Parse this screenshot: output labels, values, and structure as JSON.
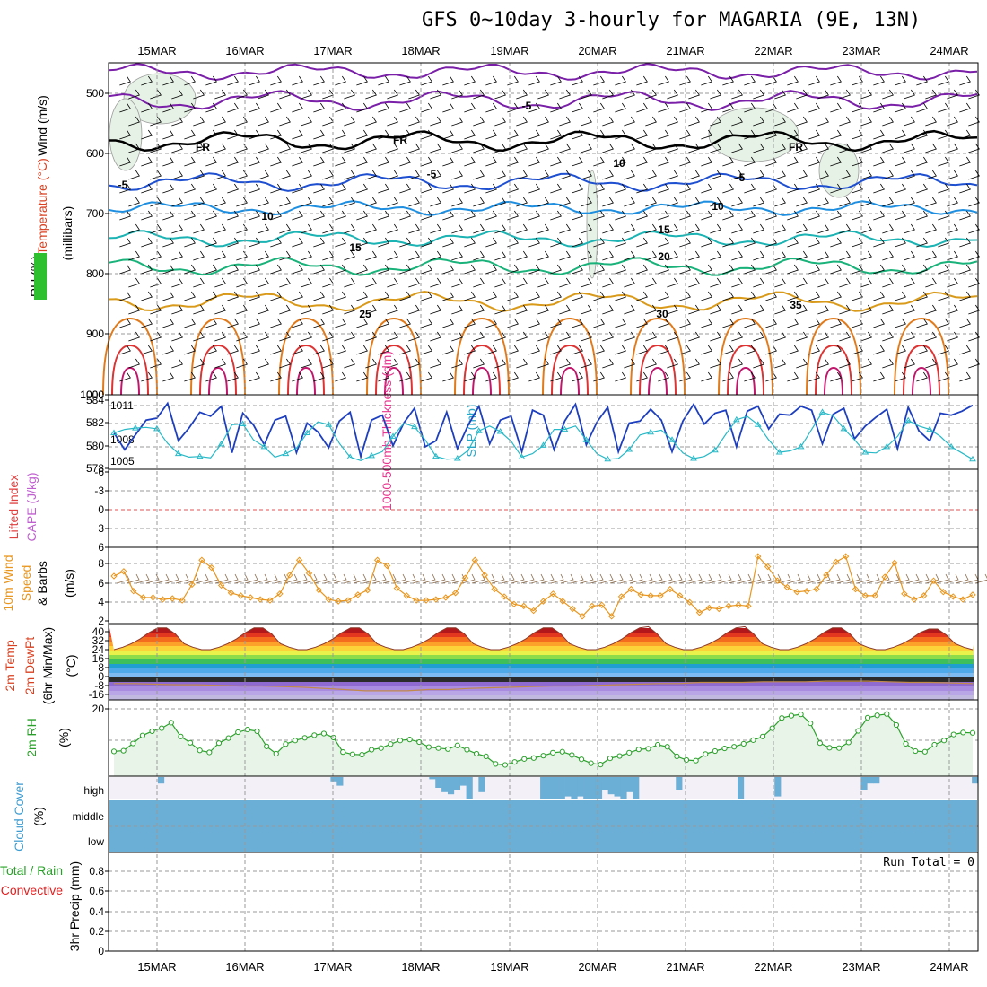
{
  "title": "GFS 0~10day 3-hourly for MAGARIA (9E, 13N)",
  "dates": [
    "15MAR",
    "16MAR",
    "17MAR",
    "18MAR",
    "19MAR",
    "20MAR",
    "21MAR",
    "22MAR",
    "23MAR",
    "24MAR"
  ],
  "colors": {
    "grid": "#9a9a9a",
    "temp_green": "#2aa02a",
    "cloud": "#6baed6",
    "rh_fill": "#e8f4e8",
    "orange": "#e8961e",
    "thickness": "#1d3fbf",
    "slp": "#27b9c7"
  },
  "panels": {
    "upper": {
      "ylabel_wind": "Wind (m/s)",
      "ylabel_temp": "Temperature (°C)",
      "ylabel_rh": "RH (%)",
      "ylabel_unit": "(millibars)",
      "levels": [
        "500",
        "600",
        "700",
        "800",
        "900",
        "1000"
      ],
      "contour_labels": [
        {
          "text": "-5",
          "color": "#7a1fa8"
        },
        {
          "text": "FR",
          "color": "#000000"
        },
        {
          "text": "FR",
          "color": "#000000"
        },
        {
          "text": "FR",
          "color": "#000000"
        },
        {
          "text": "-5",
          "color": "#1d4fd0"
        },
        {
          "text": "-5",
          "color": "#1d4fd0"
        },
        {
          "text": "-5",
          "color": "#1d4fd0"
        },
        {
          "text": "10",
          "color": "#1e8fe0"
        },
        {
          "text": "10",
          "color": "#1e8fe0"
        },
        {
          "text": "15",
          "color": "#1bb3b3"
        },
        {
          "text": "15",
          "color": "#1bb3b3"
        },
        {
          "text": "20",
          "color": "#19b27a"
        },
        {
          "text": "25",
          "color": "#d99a1a"
        },
        {
          "text": "30",
          "color": "#e07a1a"
        },
        {
          "text": "35",
          "color": "#d99a1a"
        },
        {
          "text": "10",
          "color": "#888888"
        }
      ]
    },
    "thickness_slp": {
      "ylabel_thickness": "1000-500mb Thickness (dm)",
      "ylabel_slp": "SLP (mb)",
      "left_ticks": [
        "584",
        "582",
        "580",
        "578"
      ],
      "right_ticks": [
        "1011",
        "1008",
        "1005"
      ],
      "top_tick": "1000"
    },
    "li_cape": {
      "ylabel_li": "Lifted Index",
      "ylabel_cape": "CAPE (J/kg)",
      "ticks": [
        "-6",
        "-3",
        "0",
        "3",
        "6"
      ]
    },
    "wind10m": {
      "ylabel_a": "10m Wind",
      "ylabel_b": "Speed",
      "ylabel_c": "& Barbs",
      "ylabel_unit": "(m/s)",
      "ticks": [
        "8",
        "6",
        "4",
        "2"
      ]
    },
    "temp2m": {
      "ylabel_a": "2m Temp",
      "ylabel_b": "2m DewPt",
      "ylabel_c": "(6hr Min/Max)",
      "ylabel_unit": "(°C)",
      "ticks": [
        "40",
        "32",
        "24",
        "16",
        "8",
        "0",
        "-8",
        "-16"
      ]
    },
    "rh2m": {
      "ylabel": "2m RH",
      "ylabel_unit": "(%)",
      "ticks": [
        "20"
      ]
    },
    "cloud": {
      "ylabel": "Cloud Cover",
      "ylabel_unit": "(%)",
      "layers": [
        "high",
        "middle",
        "low"
      ]
    },
    "precip": {
      "ylabel_a": "Total / Rain",
      "ylabel_b": "Convective",
      "ylabel_c": "3hr Precip (mm)",
      "ticks": [
        "0.8",
        "0.6",
        "0.4",
        "0.2",
        "0"
      ],
      "run_total": "Run Total = 0"
    }
  },
  "chart_data": [
    {
      "type": "line",
      "title": "1000-500mb Thickness / SLP",
      "ylabel": "Thickness (dm)",
      "ylim": [
        578,
        585
      ],
      "series": [
        {
          "name": "1000-500mb Thickness (dm)",
          "values": [
            581.5,
            579.8,
            581.3,
            582.8,
            583,
            584.5,
            580.7,
            582,
            583.6,
            583.2,
            584.2,
            579.5,
            583.5,
            582.3,
            580.3,
            582.8,
            583.2,
            579.5,
            582.5,
            581.6,
            580,
            582.7,
            583.6,
            579.1,
            582.8,
            583.3,
            580.2,
            582.5,
            584,
            580.1,
            580.7,
            583.6,
            579.9,
            582.3,
            584.2,
            580.4,
            582.8,
            583.2,
            579.6,
            583.8,
            583.3,
            579.8,
            582.7,
            584.4,
            580.3,
            582.6,
            584.1,
            579.6,
            582.5,
            582.7,
            583.9,
            582.8,
            579.6,
            582.7,
            584.4,
            582.4,
            583.5,
            583.8,
            580.1,
            583.7,
            584.2,
            581.9,
            583.4,
            583.3,
            584.2,
            583.8,
            580.4,
            583.4,
            584,
            580.9,
            582.2,
            583.1,
            583.9,
            579.9,
            584.1,
            581.7,
            580.7,
            583.5,
            583.3,
            583.7,
            584.3
          ]
        }
      ],
      "slp_series": {
        "name": "SLP (mb)",
        "ylim": [
          1004,
          1014
        ],
        "values": [
          1009,
          1009.5,
          1009.7,
          1009.8,
          1009.6,
          1007.5,
          1006,
          1005.5,
          1005.6,
          1005.4,
          1007.4,
          1010.2,
          1010.3,
          1008,
          1007,
          1005.5,
          1006,
          1006.8,
          1009,
          1010.6,
          1010.2,
          1007.5,
          1005.5,
          1005,
          1005.7,
          1006.3,
          1008.5,
          1010.4,
          1009.9,
          1008,
          1005.6,
          1005.2,
          1005.3,
          1006.5,
          1009.3,
          1010,
          1009.2,
          1007.8,
          1005.5,
          1006,
          1007.2,
          1009.5,
          1009.5,
          1010,
          1008,
          1006,
          1005.2,
          1005.3,
          1006.6,
          1008.7,
          1009.1,
          1009.4,
          1008,
          1006.1,
          1005.3,
          1005.6,
          1006.5,
          1008.8,
          1010.9,
          1011.4,
          1010.2,
          1008,
          1006.2,
          1006.4,
          1007,
          1009.5,
          1012,
          1011.5,
          1009.6,
          1008,
          1006.2,
          1006.1,
          1007,
          1008.5,
          1010.8,
          1010,
          1009.5,
          1008.5,
          1007,
          1006.1,
          1005.2
        ]
      }
    },
    {
      "type": "line",
      "title": "10m Wind Speed",
      "ylabel": "m/s",
      "ylim": [
        2,
        9
      ],
      "series": [
        {
          "name": "10m Wind Speed",
          "values": [
            6.7,
            7.2,
            5.1,
            4.4,
            4.4,
            4.2,
            4.3,
            4.1,
            5.8,
            8.4,
            7.6,
            5.7,
            4.9,
            4.6,
            4.4,
            4.2,
            4.1,
            4.8,
            6.8,
            8.4,
            7,
            5.2,
            4.2,
            4,
            4.1,
            4.7,
            5.2,
            8.4,
            7.8,
            5.4,
            4.6,
            4.1,
            4.1,
            4.2,
            4.4,
            4.9,
            6.5,
            8.4,
            6.8,
            5.3,
            4.5,
            3.7,
            3.5,
            3,
            4,
            4.8,
            4,
            3.2,
            2.4,
            3.5,
            3.6,
            2.4,
            4.5,
            5.3,
            4.7,
            4.6,
            4.6,
            5.3,
            4.6,
            3.9,
            2.8,
            3.3,
            3.2,
            3.5,
            3.6,
            3.5,
            8.8,
            7.7,
            6.2,
            5.5,
            5,
            5.1,
            5.3,
            6.8,
            8.2,
            8.8,
            5.3,
            4.6,
            4.6,
            6.6,
            8.1,
            4.8,
            4.2,
            4.6,
            6.2,
            5,
            4.5,
            4.2,
            4.7
          ]
        }
      ]
    },
    {
      "type": "area",
      "title": "2m Temp",
      "ylabel": "°C",
      "ylim": [
        -18,
        42
      ],
      "series": [
        {
          "name": "2m Temp",
          "values": [
            22,
            24,
            27,
            31,
            36,
            40,
            40,
            35,
            27,
            24,
            22,
            22,
            24,
            27,
            31,
            36,
            40,
            40,
            35,
            27,
            24,
            22,
            22,
            24,
            27,
            31,
            36,
            40,
            40,
            35,
            27,
            24,
            22,
            22,
            24,
            27,
            31,
            36,
            40,
            40,
            35,
            27,
            24,
            22,
            22,
            24,
            27,
            31,
            36,
            40,
            40,
            35,
            27,
            24,
            22,
            22,
            24,
            27,
            31,
            36,
            40,
            41,
            35,
            27,
            24,
            22,
            22,
            24,
            27,
            31,
            36,
            40,
            41,
            35,
            27,
            24,
            22,
            22,
            24,
            27,
            31,
            36,
            40,
            40,
            35,
            27,
            24,
            22,
            22,
            24,
            27,
            31,
            36,
            39,
            39,
            34,
            27,
            24,
            22
          ]
        },
        {
          "name": "2m DewPt",
          "values": [
            -6,
            -6,
            -6.5,
            -7,
            -7,
            -7.5,
            -8,
            -8,
            -8.5,
            -9,
            -10,
            -11,
            -12,
            -12,
            -12,
            -11,
            -11,
            -10,
            -9.5,
            -9,
            -8.5,
            -8,
            -8,
            -7.5,
            -7,
            -6.5,
            -6,
            -6,
            -5,
            -5,
            -5,
            -4.5,
            -4.5,
            -4.5,
            -4,
            -4,
            -4,
            -4.5,
            -5,
            -5,
            -5.5,
            -6
          ]
        }
      ]
    },
    {
      "type": "line",
      "title": "2m RH",
      "ylabel": "%",
      "ylim": [
        0,
        22
      ],
      "series": [
        {
          "name": "2m RH",
          "values": [
            7.5,
            7.7,
            9.9,
            12.3,
            13.6,
            14.5,
            16.2,
            12,
            10.1,
            7.8,
            7.2,
            10,
            11.5,
            13.3,
            14.1,
            13.6,
            9,
            6.8,
            9.7,
            10.8,
            11.6,
            12.4,
            12.9,
            11.7,
            7.3,
            6.6,
            6.5,
            8,
            8.5,
            9.7,
            10.8,
            11.1,
            10.3,
            8.8,
            8.5,
            8.2,
            9.3,
            8,
            6.8,
            6,
            3.7,
            3.4,
            4.3,
            5.2,
            5.5,
            6.2,
            7.1,
            7.4,
            6.4,
            5.1,
            3.9,
            3.5,
            5.4,
            6.1,
            7.1,
            8.1,
            8.3,
            9.5,
            8.9,
            6,
            4.9,
            4.7,
            6.7,
            7.6,
            8.4,
            8.9,
            9.8,
            10.9,
            12,
            14.5,
            17.6,
            18.3,
            18.7,
            16,
            10,
            8.6,
            8.5,
            10.2,
            13.7,
            17.7,
            18.4,
            18.8,
            15.5,
            9.8,
            7.6,
            7.4,
            9.5,
            10.8,
            12.6,
            13.2,
            13.1
          ]
        }
      ]
    },
    {
      "type": "bar",
      "title": "High Cloud Cover",
      "ylabel": "%",
      "ylim": [
        0,
        100
      ],
      "values": [
        0,
        0,
        0,
        0,
        0,
        0,
        0,
        0,
        30,
        0,
        0,
        0,
        0,
        0,
        0,
        0,
        0,
        0,
        0,
        0,
        0,
        0,
        0,
        0,
        0,
        0,
        0,
        0,
        0,
        0,
        0,
        0,
        0,
        0,
        0,
        0,
        20,
        40,
        0,
        0,
        0,
        0,
        0,
        0,
        0,
        0,
        0,
        0,
        0,
        0,
        0,
        0,
        10,
        50,
        70,
        80,
        60,
        40,
        100,
        0,
        70,
        0,
        0,
        0,
        0,
        0,
        0,
        0,
        0,
        0,
        100,
        100,
        100,
        100,
        90,
        100,
        90,
        100,
        100,
        100,
        60,
        80,
        90,
        100,
        70,
        100,
        0,
        0,
        0,
        0,
        0,
        0,
        60,
        0,
        0,
        0,
        0,
        0,
        0,
        0,
        0,
        0,
        100,
        0,
        0,
        0,
        0,
        0,
        90,
        0,
        0,
        0,
        0,
        0,
        0,
        0,
        0,
        0,
        0,
        0,
        0,
        0,
        60,
        30,
        30,
        0,
        0,
        0,
        0,
        0,
        0,
        0,
        0,
        0,
        0,
        0,
        0,
        0,
        0,
        0,
        30
      ]
    },
    {
      "type": "bar",
      "title": "3hr Precip",
      "ylabel": "mm",
      "ylim": [
        0,
        1
      ],
      "values": [
        0,
        0,
        0,
        0,
        0,
        0,
        0,
        0,
        0,
        0
      ]
    }
  ]
}
